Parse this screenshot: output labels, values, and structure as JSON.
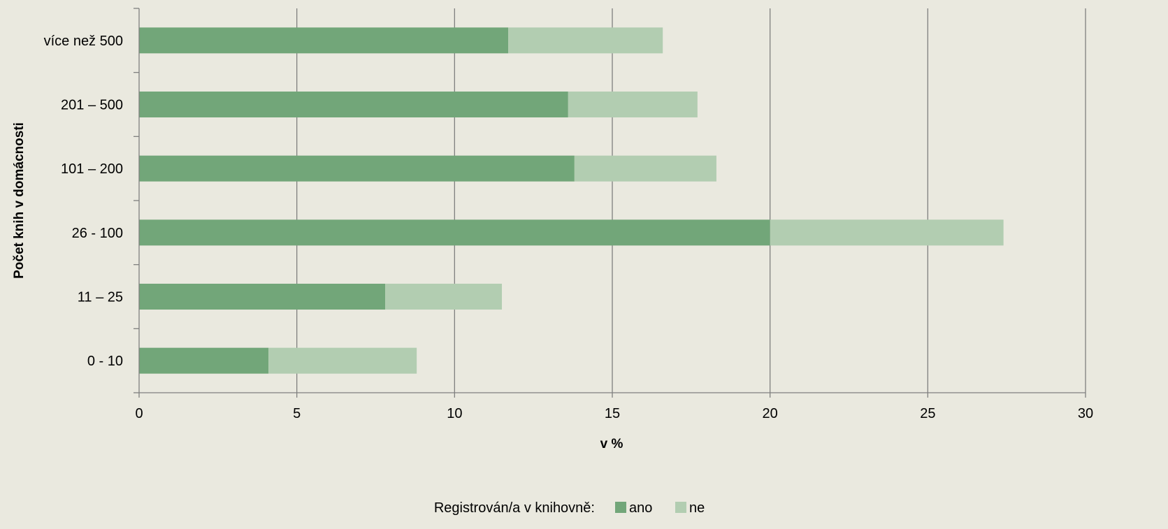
{
  "chart_data": {
    "type": "bar",
    "orientation": "horizontal",
    "stacked": true,
    "title": "",
    "xlabel": "v %",
    "ylabel": "Počet knih v domácnosti",
    "categories": [
      "0 - 10",
      "11 – 25",
      "26 - 100",
      "101 – 200",
      "201 – 500",
      "více než 500"
    ],
    "series": [
      {
        "name": "ano",
        "values": [
          4.1,
          7.8,
          20.0,
          13.8,
          13.6,
          11.7
        ]
      },
      {
        "name": "ne",
        "values": [
          4.7,
          3.7,
          7.4,
          4.5,
          4.1,
          4.9
        ]
      }
    ],
    "xlim": [
      0,
      30
    ],
    "xticks": [
      0,
      5,
      10,
      15,
      20,
      25,
      30
    ],
    "grid": "vertical",
    "legend": {
      "title": "Registrován/a v knihovně:",
      "placement": "bottom"
    },
    "colors": {
      "ano": "#72a679",
      "ne": "#b2cdb1",
      "background": "#eae9df",
      "grid": "#7f7f7f"
    }
  }
}
